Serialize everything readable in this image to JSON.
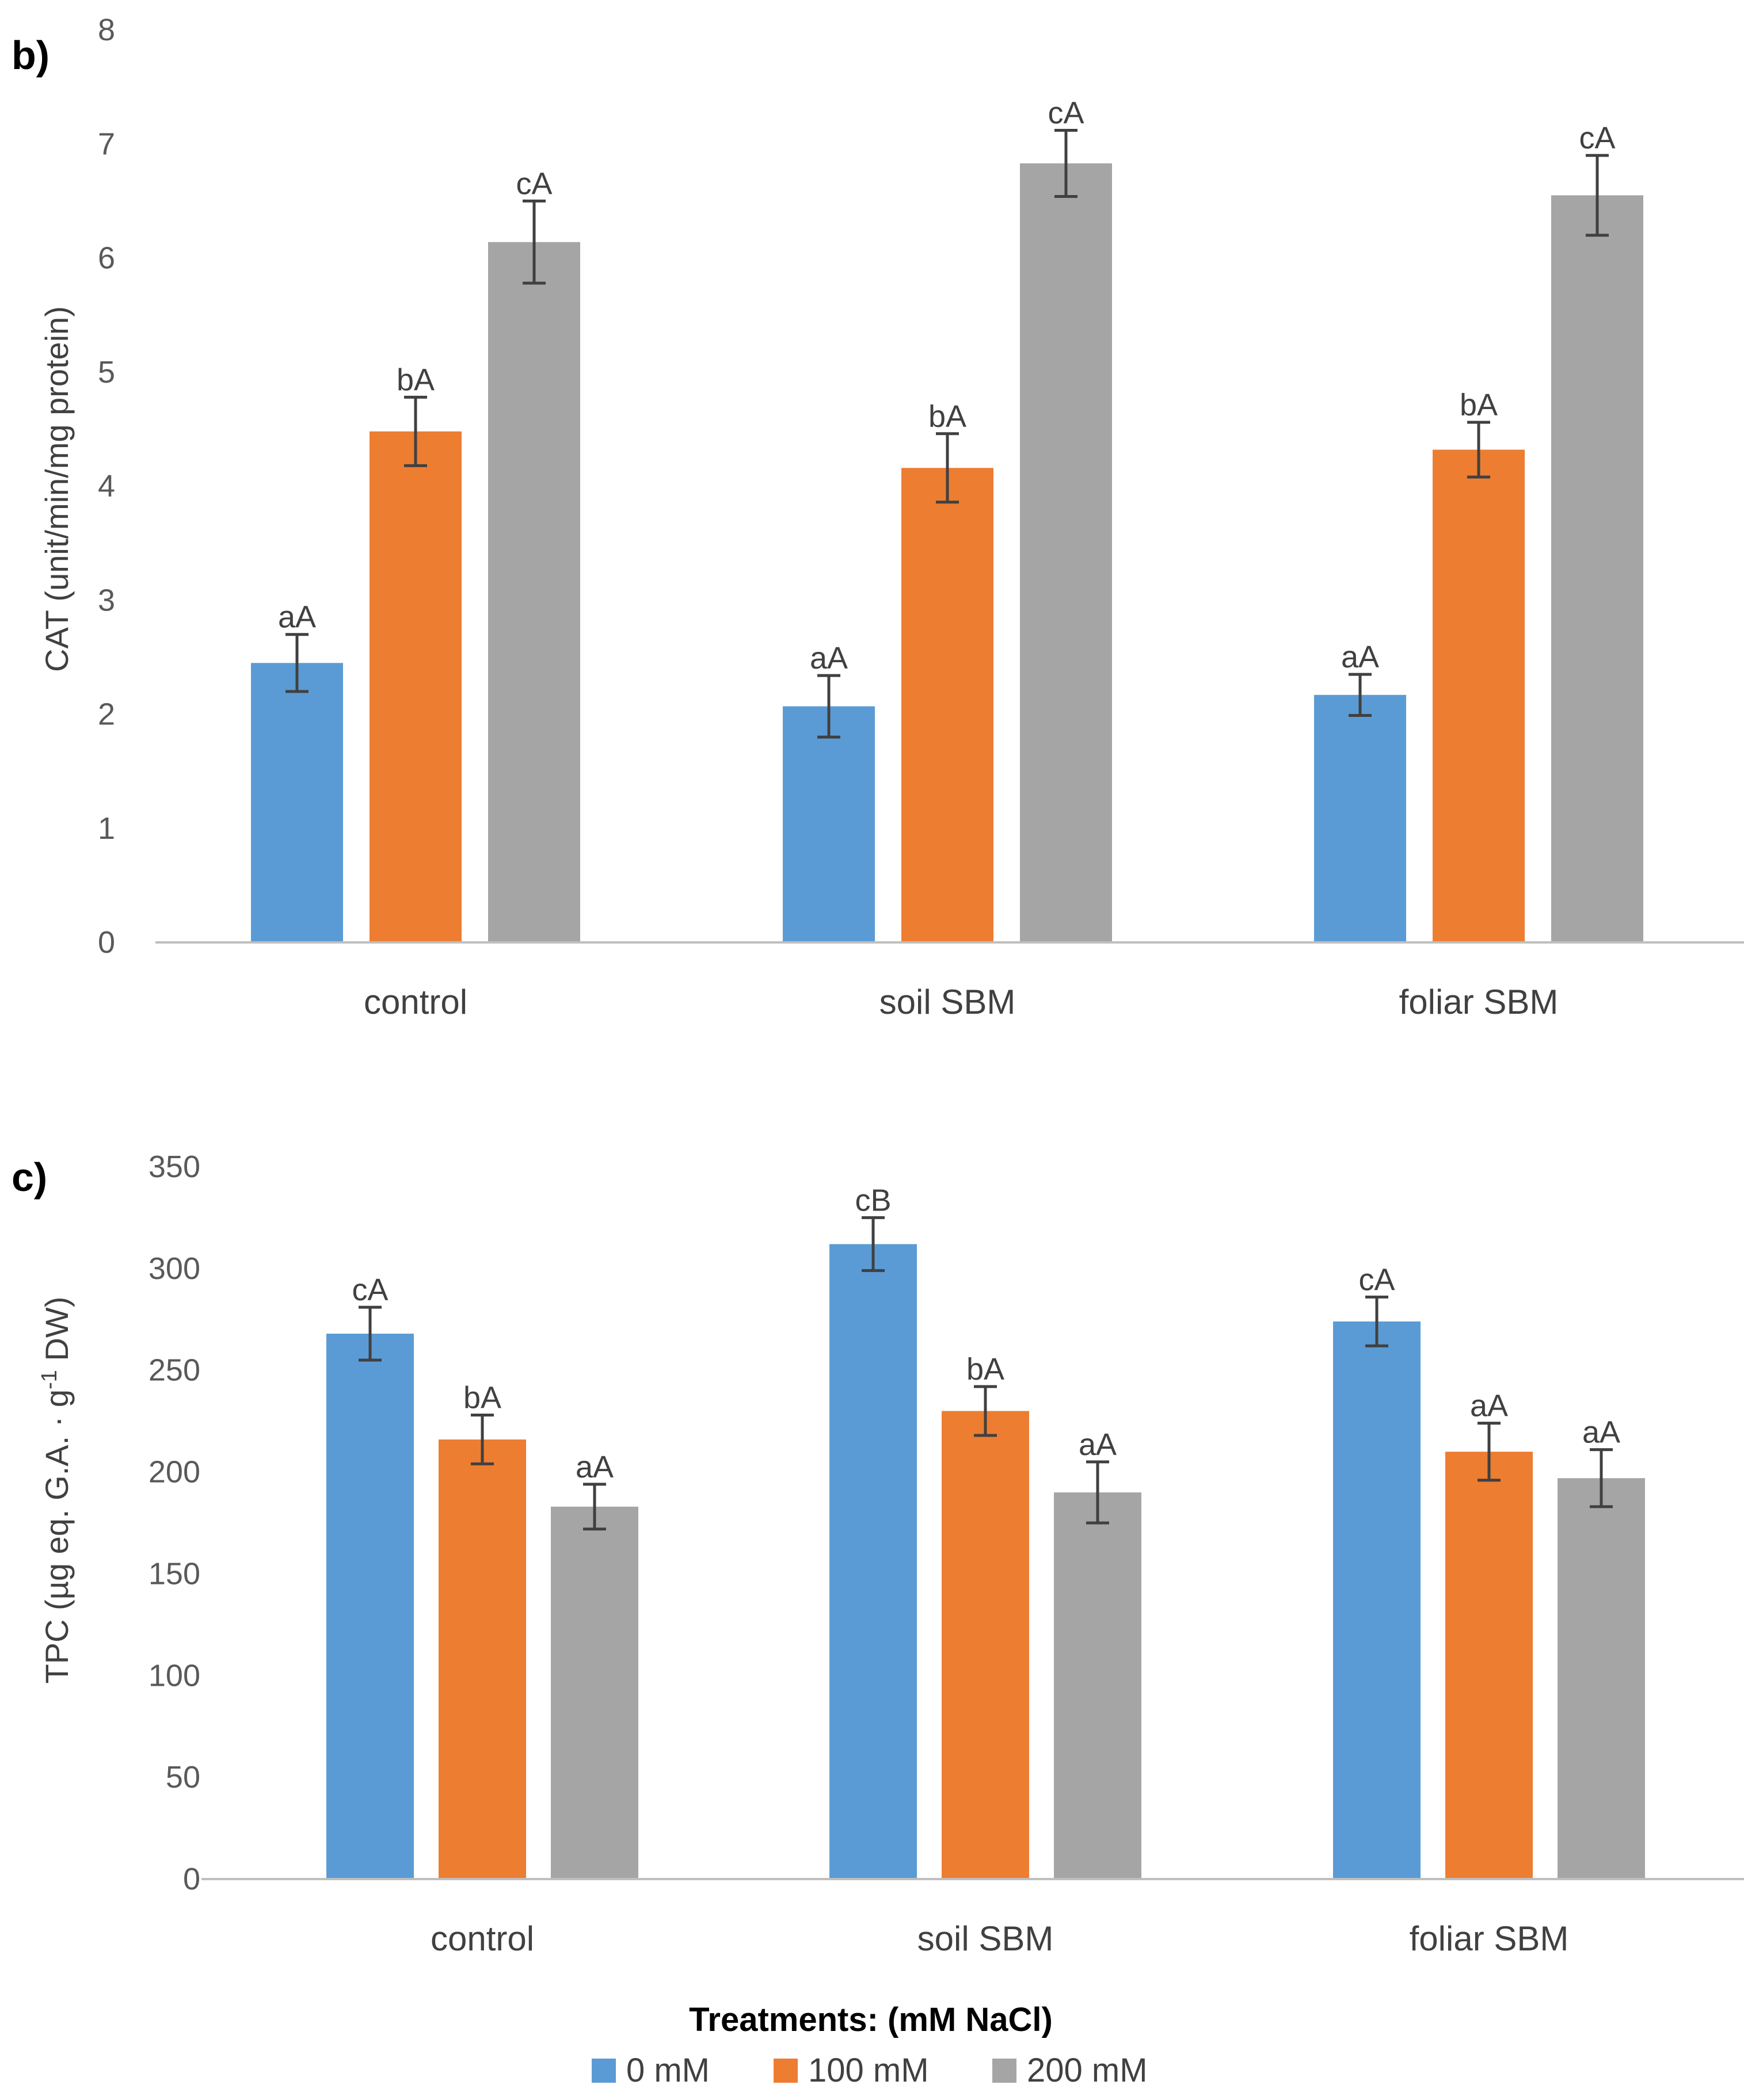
{
  "chart_data": [
    {
      "type": "bar",
      "panel": "b)",
      "ylabel": "CAT (unit/min/mg protein)",
      "categories": [
        "control",
        "soil SBM",
        "foliar SBM"
      ],
      "ylim": [
        0,
        8
      ],
      "yticks": [
        "0",
        "1",
        "2",
        "3",
        "4",
        "5",
        "6",
        "7",
        "8"
      ],
      "series": [
        {
          "name": "0 mM",
          "color": "#5b9bd5",
          "values": [
            2.45,
            2.07,
            2.17
          ],
          "errors": [
            0.25,
            0.27,
            0.18
          ],
          "labels": [
            "aA",
            "aA",
            "aA"
          ]
        },
        {
          "name": "100 mM",
          "color": "#ed7d31",
          "values": [
            4.48,
            4.16,
            4.32
          ],
          "errors": [
            0.3,
            0.3,
            0.24
          ],
          "labels": [
            "bA",
            "bA",
            "bA"
          ]
        },
        {
          "name": "200 mM",
          "color": "#a5a5a5",
          "values": [
            6.14,
            6.83,
            6.55
          ],
          "errors": [
            0.36,
            0.29,
            0.35
          ],
          "labels": [
            "cA",
            "cA",
            "cA"
          ]
        }
      ]
    },
    {
      "type": "bar",
      "panel": "c)",
      "ylabel": "TPC (µg eq. G.A. · g",
      "ylabel_sup": "-1",
      "ylabel_tail": " DW)",
      "categories": [
        "control",
        "soil SBM",
        "foliar SBM"
      ],
      "ylim": [
        0,
        350
      ],
      "yticks": [
        "0",
        "50",
        "100",
        "150",
        "200",
        "250",
        "300",
        "350"
      ],
      "series": [
        {
          "name": "0 mM",
          "color": "#5b9bd5",
          "values": [
            268,
            312,
            274
          ],
          "errors": [
            13,
            13,
            12
          ],
          "labels": [
            "cA",
            "cB",
            "cA"
          ]
        },
        {
          "name": "100 mM",
          "color": "#ed7d31",
          "values": [
            216,
            230,
            210
          ],
          "errors": [
            12,
            12,
            14
          ],
          "labels": [
            "bA",
            "bA",
            "aA"
          ]
        },
        {
          "name": "200 mM",
          "color": "#a5a5a5",
          "values": [
            183,
            190,
            197
          ],
          "errors": [
            11,
            15,
            14
          ],
          "labels": [
            "aA",
            "aA",
            "aA"
          ]
        }
      ]
    }
  ],
  "legend": {
    "title": "Treatments: (mM NaCl)",
    "items": [
      {
        "label": "0 mM",
        "color": "#5b9bd5"
      },
      {
        "label": "100 mM",
        "color": "#ed7d31"
      },
      {
        "label": "200 mM",
        "color": "#a5a5a5"
      }
    ]
  },
  "colors": {
    "axis": "#bfbfbf",
    "error_bar": "#404040",
    "text": "#404040"
  }
}
